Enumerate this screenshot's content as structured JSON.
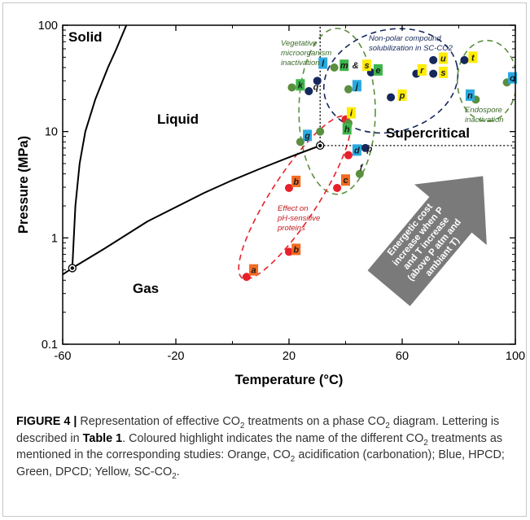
{
  "chart_data": {
    "type": "scatter",
    "title": "",
    "xlabel": "Temperature (°C)",
    "ylabel": "Pressure (MPa)",
    "xlim": [
      -60,
      100
    ],
    "ylim": [
      0.1,
      100
    ],
    "yscale": "log",
    "x_ticks": [
      "-60",
      "-20",
      "20",
      "60",
      "100"
    ],
    "x_tick_values": [
      -60,
      -20,
      20,
      60,
      100
    ],
    "y_ticks": [
      "0.1",
      "1",
      "10",
      "100"
    ],
    "y_tick_values": [
      0.1,
      1,
      10,
      100
    ],
    "grid": false,
    "region_labels": {
      "solid": "Solid",
      "liquid": "Liquid",
      "gas": "Gas",
      "supercritical": "Supercritical"
    },
    "key_points": {
      "triple_point": {
        "x": -56.6,
        "y": 0.52
      },
      "critical_point": {
        "x": 31,
        "y": 7.38
      }
    },
    "curves": {
      "solid_liquid": [
        [
          -56.6,
          0.52
        ],
        [
          -55.5,
          2
        ],
        [
          -54,
          5
        ],
        [
          -52,
          10
        ],
        [
          -48.5,
          20
        ],
        [
          -44,
          40
        ],
        [
          -41,
          60
        ],
        [
          -37.5,
          100
        ]
      ],
      "solid_gas": [
        [
          -63,
          0.4
        ],
        [
          -56.6,
          0.52
        ]
      ],
      "liquid_gas": [
        [
          -56.6,
          0.52
        ],
        [
          -45,
          0.8
        ],
        [
          -30,
          1.43
        ],
        [
          -10,
          2.65
        ],
        [
          0,
          3.49
        ],
        [
          10,
          4.5
        ],
        [
          20,
          5.73
        ],
        [
          31,
          7.38
        ]
      ]
    },
    "callout_arrow_text": [
      "Energetic cost",
      "increase when P",
      "and T increase",
      "(above P atm and",
      "ambiant T)"
    ],
    "annotations": {
      "vegetative": [
        "Vegetative",
        "microorganism",
        "inactivation"
      ],
      "nonpolar": [
        "Non-polar compound",
        "solubilization in SC-CO2"
      ],
      "endospore": [
        "Endospore",
        "inactivation"
      ],
      "ph_effect": [
        "Effect on",
        "pH-sensitive",
        "proteins"
      ]
    },
    "series": [
      {
        "name": "Red",
        "color": "#e8202a",
        "points": [
          [
            5,
            0.43
          ],
          [
            20,
            0.74
          ],
          [
            20,
            2.95
          ],
          [
            37,
            2.95
          ],
          [
            41,
            6
          ],
          [
            40,
            13
          ]
        ]
      },
      {
        "name": "Green",
        "color": "#5a8f3e",
        "points": [
          [
            21,
            26
          ],
          [
            24,
            8
          ],
          [
            31,
            10
          ],
          [
            41,
            12
          ],
          [
            36,
            40
          ],
          [
            41,
            25
          ],
          [
            45,
            4
          ],
          [
            86,
            20
          ],
          [
            97,
            29
          ]
        ]
      },
      {
        "name": "Navy",
        "color": "#15285c",
        "points": [
          [
            27,
            24
          ],
          [
            30,
            30
          ],
          [
            47,
            7
          ],
          [
            49,
            36
          ],
          [
            56,
            21
          ],
          [
            65,
            35
          ],
          [
            71,
            47
          ],
          [
            71,
            35
          ],
          [
            82,
            47
          ]
        ]
      }
    ],
    "labels": [
      {
        "text": "a",
        "x": 7.5,
        "y": 0.5,
        "color": "#f26b21"
      },
      {
        "text": "b",
        "x": 22.5,
        "y": 0.78,
        "color": "#f26b21"
      },
      {
        "text": "b",
        "x": 22.5,
        "y": 3.4,
        "color": "#f26b21"
      },
      {
        "text": "c",
        "x": 40,
        "y": 3.5,
        "color": "#f26b21"
      },
      {
        "text": "d",
        "x": 44,
        "y": 6.7,
        "color": "#29a9e0"
      },
      {
        "text": "p",
        "x": 48.5,
        "y": 6.9,
        "color": ""
      },
      {
        "text": "f",
        "x": 45.5,
        "y": 4.6,
        "color": ""
      },
      {
        "text": "g",
        "x": 26.5,
        "y": 9.2,
        "color": "#29a9e0"
      },
      {
        "text": "h",
        "x": 40.5,
        "y": 10.6,
        "color": "#3db54a"
      },
      {
        "text": "i",
        "x": 42,
        "y": 15,
        "color": "#ffec00"
      },
      {
        "text": "j",
        "x": 44,
        "y": 27,
        "color": "#29a9e0"
      },
      {
        "text": "k",
        "x": 24,
        "y": 27.5,
        "color": "#3db54a"
      },
      {
        "text": "l",
        "x": 32,
        "y": 44,
        "color": "#29a9e0"
      },
      {
        "text": "q",
        "x": 29.5,
        "y": 26.5,
        "color": ""
      },
      {
        "text": "m",
        "x": 39.5,
        "y": 42,
        "color": "#3db54a"
      },
      {
        "text": "&",
        "x": 43.5,
        "y": 42,
        "color": ""
      },
      {
        "text": "s",
        "x": 47.5,
        "y": 42,
        "color": "#ffec00"
      },
      {
        "text": "e",
        "x": 51.5,
        "y": 38,
        "color": "#3db54a"
      },
      {
        "text": "r",
        "x": 67,
        "y": 38,
        "color": "#ffec00"
      },
      {
        "text": "p",
        "x": 60,
        "y": 22,
        "color": "#ffec00"
      },
      {
        "text": "u",
        "x": 74.5,
        "y": 49,
        "color": "#ffec00"
      },
      {
        "text": "s",
        "x": 74.5,
        "y": 36,
        "color": "#ffec00"
      },
      {
        "text": "t",
        "x": 85,
        "y": 50,
        "color": "#ffec00"
      },
      {
        "text": "n",
        "x": 84,
        "y": 22,
        "color": "#29a9e0"
      },
      {
        "text": "o",
        "x": 99,
        "y": 32,
        "color": "#29a9e0"
      }
    ],
    "ellipses": [
      {
        "name": "vegetative",
        "cx": 37,
        "cy": 15.5,
        "rx_units": 13.5,
        "ry_log": 0.78,
        "angle": 0,
        "color": "#5a8f3e"
      },
      {
        "name": "nonpolar",
        "cx": 56,
        "cy": 30,
        "rx_units": 24,
        "ry_log": 0.48,
        "angle": -14,
        "color": "#15285c"
      },
      {
        "name": "endospore",
        "cx": 90,
        "cy": 30,
        "rx_units": 10.5,
        "ry_log": 0.38,
        "angle": 0,
        "color": "#5a8f3e"
      },
      {
        "name": "ph_effect",
        "cx": 22,
        "cy": 2.4,
        "rx_units": 34,
        "ry_log": 0.22,
        "angle": -57,
        "color": "#e8202a"
      }
    ]
  },
  "caption": {
    "label": "FIGURE 4 |",
    "line1_a": "Representation of effective CO",
    "line1_b": " treatments on a phase CO",
    "line2_a": "diagram. Lettering is described in ",
    "table_ref": "Table 1",
    "line2_b": ". Coloured highlight indicates the",
    "line3_a": "name of the different CO",
    "line3_b": " treatments as mentioned in the corresponding",
    "line4_a": "studies: Orange, CO",
    "line4_b": " acidification (carbonation); Blue, HPCD; Green, DPCD;",
    "line5_a": "Yellow, SC-CO",
    "line5_b": ".",
    "sub2": "2"
  }
}
